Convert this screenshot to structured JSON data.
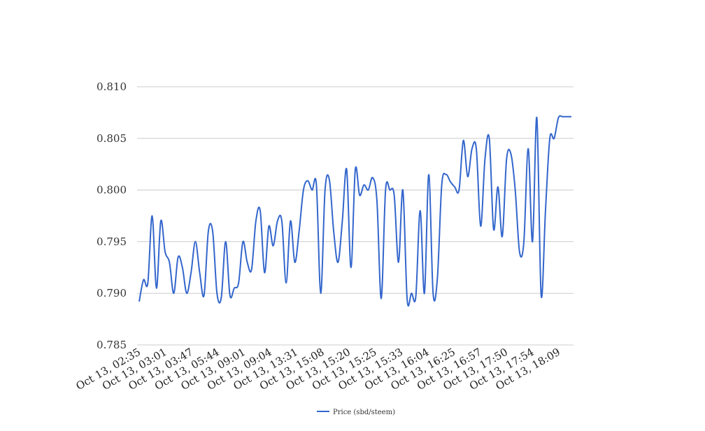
{
  "chart_data": {
    "type": "line",
    "title": "",
    "xlabel": "",
    "ylabel": "",
    "ylim": [
      0.785,
      0.81
    ],
    "yticks": [
      "0.810",
      "0.805",
      "0.800",
      "0.795",
      "0.790",
      "0.785"
    ],
    "ytick_values": [
      0.81,
      0.805,
      0.8,
      0.795,
      0.79,
      0.785
    ],
    "xtick_labels": [
      "Oct 13, 02:35",
      "Oct 13, 03:01",
      "Oct 13, 03:47",
      "Oct 13, 05:44",
      "Oct 13, 09:01",
      "Oct 13, 09:04",
      "Oct 13, 13:31",
      "Oct 13, 15:08",
      "Oct 13, 15:20",
      "Oct 13, 15:25",
      "Oct 13, 15:33",
      "Oct 13, 16:04",
      "Oct 13, 16:25",
      "Oct 13, 16:57",
      "Oct 13, 17:50",
      "Oct 13, 17:54",
      "Oct 13, 18:09"
    ],
    "grid": true,
    "legend_position": "bottom",
    "series": [
      {
        "name": "Price (sbd/steem)",
        "color": "#3366cc",
        "values": [
          0.7892,
          0.7913,
          0.791,
          0.7975,
          0.7905,
          0.797,
          0.794,
          0.793,
          0.79,
          0.7935,
          0.7925,
          0.79,
          0.792,
          0.795,
          0.792,
          0.7898,
          0.796,
          0.796,
          0.79,
          0.7896,
          0.795,
          0.7898,
          0.7905,
          0.791,
          0.795,
          0.793,
          0.7923,
          0.797,
          0.798,
          0.792,
          0.7965,
          0.7946,
          0.797,
          0.797,
          0.791,
          0.797,
          0.793,
          0.796,
          0.8,
          0.8009,
          0.8,
          0.8005,
          0.79,
          0.8,
          0.801,
          0.796,
          0.793,
          0.797,
          0.802,
          0.7925,
          0.802,
          0.7995,
          0.8005,
          0.8,
          0.8012,
          0.799,
          0.7895,
          0.8,
          0.8,
          0.7995,
          0.793,
          0.8,
          0.7894,
          0.79,
          0.7897,
          0.798,
          0.79,
          0.8015,
          0.79,
          0.7915,
          0.8005,
          0.8015,
          0.8008,
          0.8003,
          0.8,
          0.8048,
          0.8013,
          0.804,
          0.804,
          0.7965,
          0.803,
          0.805,
          0.7962,
          0.8003,
          0.7955,
          0.803,
          0.8035,
          0.8,
          0.794,
          0.795,
          0.804,
          0.795,
          0.807,
          0.7898,
          0.798,
          0.805,
          0.805,
          0.807,
          0.8071,
          0.8071,
          0.8071
        ]
      }
    ]
  }
}
